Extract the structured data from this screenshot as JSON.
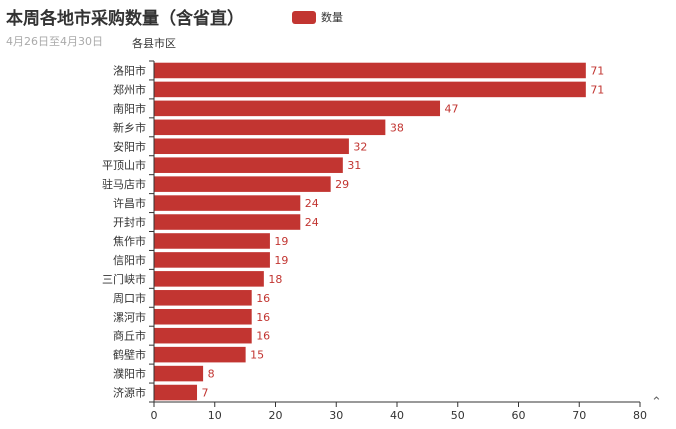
{
  "header": {
    "title": "本周各地市采购数量（含省直）",
    "subtitle": "4月26日至4月30日"
  },
  "legend": {
    "label": "数量"
  },
  "colors": {
    "bar": "#c23531"
  },
  "icons": {
    "corner": "chevron-up-icon"
  },
  "chart_data": {
    "type": "bar",
    "orientation": "horizontal",
    "title": "本周各地市采购数量（含省直）",
    "subtitle": "4月26日至4月30日",
    "ylabel": "各县市区",
    "xlabel": "",
    "xlim": [
      0,
      80
    ],
    "xticks": [
      0,
      10,
      20,
      30,
      40,
      50,
      60,
      70,
      80
    ],
    "grid": false,
    "legend_position": "top-center",
    "categories": [
      "洛阳市",
      "郑州市",
      "南阳市",
      "新乡市",
      "安阳市",
      "平顶山市",
      "驻马店市",
      "许昌市",
      "开封市",
      "焦作市",
      "信阳市",
      "三门峡市",
      "周口市",
      "漯河市",
      "商丘市",
      "鹤壁市",
      "濮阳市",
      "济源市"
    ],
    "series": [
      {
        "name": "数量",
        "values": [
          71,
          71,
          47,
          38,
          32,
          31,
          29,
          24,
          24,
          19,
          19,
          18,
          16,
          16,
          16,
          15,
          8,
          7
        ]
      }
    ]
  }
}
